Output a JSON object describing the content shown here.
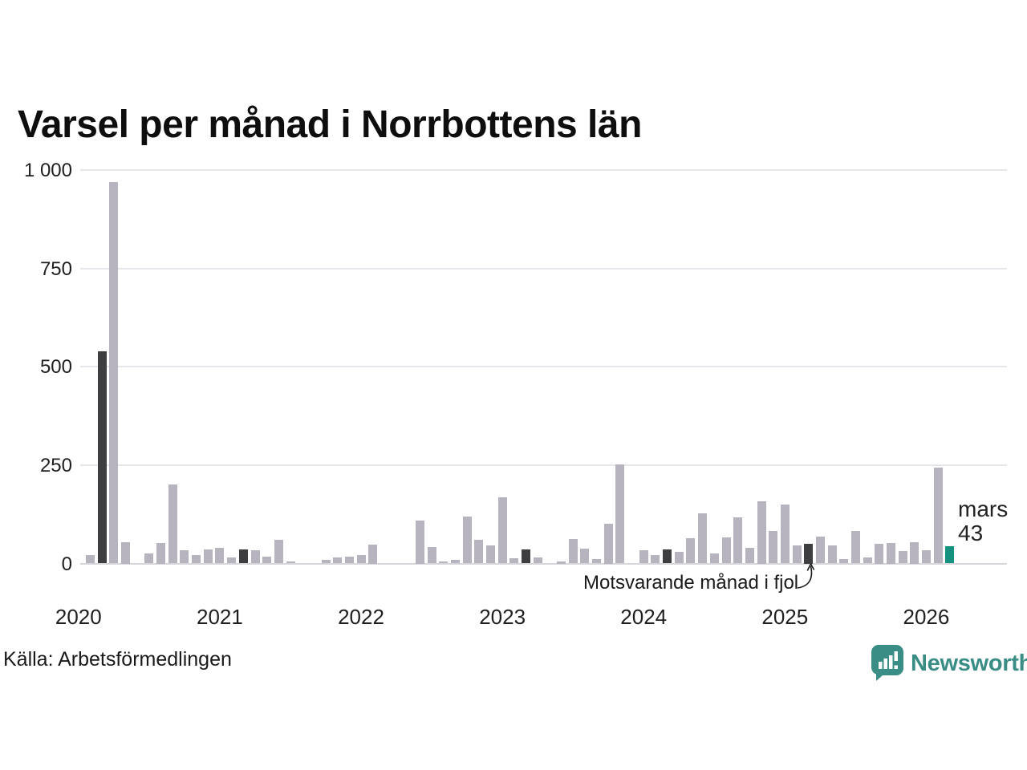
{
  "title": "Varsel per månad i Norrbottens län",
  "source": "Källa: Arbetsförmedlingen",
  "branding": {
    "name": "Newsworthy",
    "color": "#3a8d85"
  },
  "annotation": {
    "text": "Motsvarande månad i fjol",
    "target_month": "2025-03"
  },
  "current_label": {
    "line1": "mars",
    "line2": "43"
  },
  "colors": {
    "bar": "#b7b4bf",
    "bar_dark": "#3e3e40",
    "bar_current": "#169180",
    "grid": "#e7e6ea",
    "axis_zero": "#d6d5da",
    "text": "#1a1a1a"
  },
  "chart_data": {
    "type": "bar",
    "title": "Varsel per månad i Norrbottens län",
    "ylabel": "",
    "xlabel": "",
    "ylim": [
      0,
      1000
    ],
    "y_ticks": [
      {
        "value": 0,
        "label": "0"
      },
      {
        "value": 250,
        "label": "250"
      },
      {
        "value": 500,
        "label": "500"
      },
      {
        "value": 750,
        "label": "750"
      },
      {
        "value": 1000,
        "label": "1 000"
      }
    ],
    "x_tick_labels": [
      "2020",
      "2021",
      "2022",
      "2023",
      "2024",
      "2025",
      "2026"
    ],
    "grid": true,
    "legend": "none",
    "highlight_meaning": {
      "dark": "mars (motsvarande månad tidigare år)",
      "current": "mars 2026, senaste värdet"
    },
    "series": [
      {
        "m": "2020-02",
        "v": 22
      },
      {
        "m": "2020-03",
        "v": 540,
        "h": "dark"
      },
      {
        "m": "2020-04",
        "v": 970
      },
      {
        "m": "2020-05",
        "v": 55
      },
      {
        "m": "2020-06",
        "v": 0
      },
      {
        "m": "2020-07",
        "v": 25
      },
      {
        "m": "2020-08",
        "v": 52
      },
      {
        "m": "2020-09",
        "v": 200
      },
      {
        "m": "2020-10",
        "v": 33
      },
      {
        "m": "2020-11",
        "v": 22
      },
      {
        "m": "2020-12",
        "v": 35
      },
      {
        "m": "2021-01",
        "v": 39
      },
      {
        "m": "2021-02",
        "v": 15
      },
      {
        "m": "2021-03",
        "v": 35,
        "h": "dark"
      },
      {
        "m": "2021-04",
        "v": 34
      },
      {
        "m": "2021-05",
        "v": 18
      },
      {
        "m": "2021-06",
        "v": 60
      },
      {
        "m": "2021-07",
        "v": 6
      },
      {
        "m": "2021-08",
        "v": 0
      },
      {
        "m": "2021-09",
        "v": 0
      },
      {
        "m": "2021-10",
        "v": 10
      },
      {
        "m": "2021-11",
        "v": 15
      },
      {
        "m": "2021-12",
        "v": 18
      },
      {
        "m": "2022-01",
        "v": 21
      },
      {
        "m": "2022-02",
        "v": 48
      },
      {
        "m": "2022-03",
        "v": 0,
        "h": "dark"
      },
      {
        "m": "2022-04",
        "v": 0
      },
      {
        "m": "2022-05",
        "v": 0
      },
      {
        "m": "2022-06",
        "v": 110
      },
      {
        "m": "2022-07",
        "v": 41
      },
      {
        "m": "2022-08",
        "v": 6
      },
      {
        "m": "2022-09",
        "v": 10
      },
      {
        "m": "2022-10",
        "v": 119
      },
      {
        "m": "2022-11",
        "v": 60
      },
      {
        "m": "2022-12",
        "v": 46
      },
      {
        "m": "2023-01",
        "v": 168
      },
      {
        "m": "2023-02",
        "v": 14
      },
      {
        "m": "2023-03",
        "v": 35,
        "h": "dark"
      },
      {
        "m": "2023-04",
        "v": 16
      },
      {
        "m": "2023-05",
        "v": 0
      },
      {
        "m": "2023-06",
        "v": 5
      },
      {
        "m": "2023-07",
        "v": 62
      },
      {
        "m": "2023-08",
        "v": 37
      },
      {
        "m": "2023-09",
        "v": 12
      },
      {
        "m": "2023-10",
        "v": 101
      },
      {
        "m": "2023-11",
        "v": 251
      },
      {
        "m": "2023-12",
        "v": 0
      },
      {
        "m": "2024-01",
        "v": 33
      },
      {
        "m": "2024-02",
        "v": 21
      },
      {
        "m": "2024-03",
        "v": 36,
        "h": "dark"
      },
      {
        "m": "2024-04",
        "v": 29
      },
      {
        "m": "2024-05",
        "v": 65
      },
      {
        "m": "2024-06",
        "v": 128
      },
      {
        "m": "2024-07",
        "v": 26
      },
      {
        "m": "2024-08",
        "v": 67
      },
      {
        "m": "2024-09",
        "v": 117
      },
      {
        "m": "2024-10",
        "v": 39
      },
      {
        "m": "2024-11",
        "v": 158
      },
      {
        "m": "2024-12",
        "v": 82
      },
      {
        "m": "2025-01",
        "v": 150
      },
      {
        "m": "2025-02",
        "v": 46
      },
      {
        "m": "2025-03",
        "v": 50,
        "h": "dark"
      },
      {
        "m": "2025-04",
        "v": 69
      },
      {
        "m": "2025-05",
        "v": 45
      },
      {
        "m": "2025-06",
        "v": 12
      },
      {
        "m": "2025-07",
        "v": 82
      },
      {
        "m": "2025-08",
        "v": 16
      },
      {
        "m": "2025-09",
        "v": 51
      },
      {
        "m": "2025-10",
        "v": 53
      },
      {
        "m": "2025-11",
        "v": 31
      },
      {
        "m": "2025-12",
        "v": 55
      },
      {
        "m": "2026-01",
        "v": 33
      },
      {
        "m": "2026-02",
        "v": 243
      },
      {
        "m": "2026-03",
        "v": 43,
        "h": "current"
      }
    ]
  }
}
